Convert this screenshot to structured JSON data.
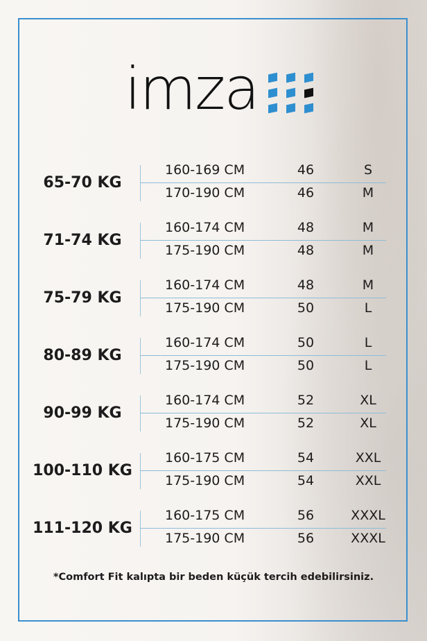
{
  "brand": {
    "name": "imza",
    "accent": "#2e8fd0",
    "frame_color": "#3a8fd0"
  },
  "groups": [
    {
      "weight": "65-70 KG",
      "rows": [
        {
          "height": "160-169 CM",
          "number": "46",
          "size": "S"
        },
        {
          "height": "170-190 CM",
          "number": "46",
          "size": "M"
        }
      ]
    },
    {
      "weight": "71-74 KG",
      "rows": [
        {
          "height": "160-174 CM",
          "number": "48",
          "size": "M"
        },
        {
          "height": "175-190 CM",
          "number": "48",
          "size": "M"
        }
      ]
    },
    {
      "weight": "75-79 KG",
      "rows": [
        {
          "height": "160-174 CM",
          "number": "48",
          "size": "M"
        },
        {
          "height": "175-190 CM",
          "number": "50",
          "size": "L"
        }
      ]
    },
    {
      "weight": "80-89 KG",
      "rows": [
        {
          "height": "160-174 CM",
          "number": "50",
          "size": "L"
        },
        {
          "height": "175-190 CM",
          "number": "50",
          "size": "L"
        }
      ]
    },
    {
      "weight": "90-99 KG",
      "rows": [
        {
          "height": "160-174 CM",
          "number": "52",
          "size": "XL"
        },
        {
          "height": "175-190 CM",
          "number": "52",
          "size": "XL"
        }
      ]
    },
    {
      "weight": "100-110 KG",
      "rows": [
        {
          "height": "160-175 CM",
          "number": "54",
          "size": "XXL"
        },
        {
          "height": "175-190 CM",
          "number": "54",
          "size": "XXL"
        }
      ]
    },
    {
      "weight": "111-120 KG",
      "rows": [
        {
          "height": "160-175 CM",
          "number": "56",
          "size": "XXXL"
        },
        {
          "height": "175-190 CM",
          "number": "56",
          "size": "XXXL"
        }
      ]
    }
  ],
  "note": "*Comfort Fit kalıpta bir beden küçük tercih edebilirsiniz."
}
